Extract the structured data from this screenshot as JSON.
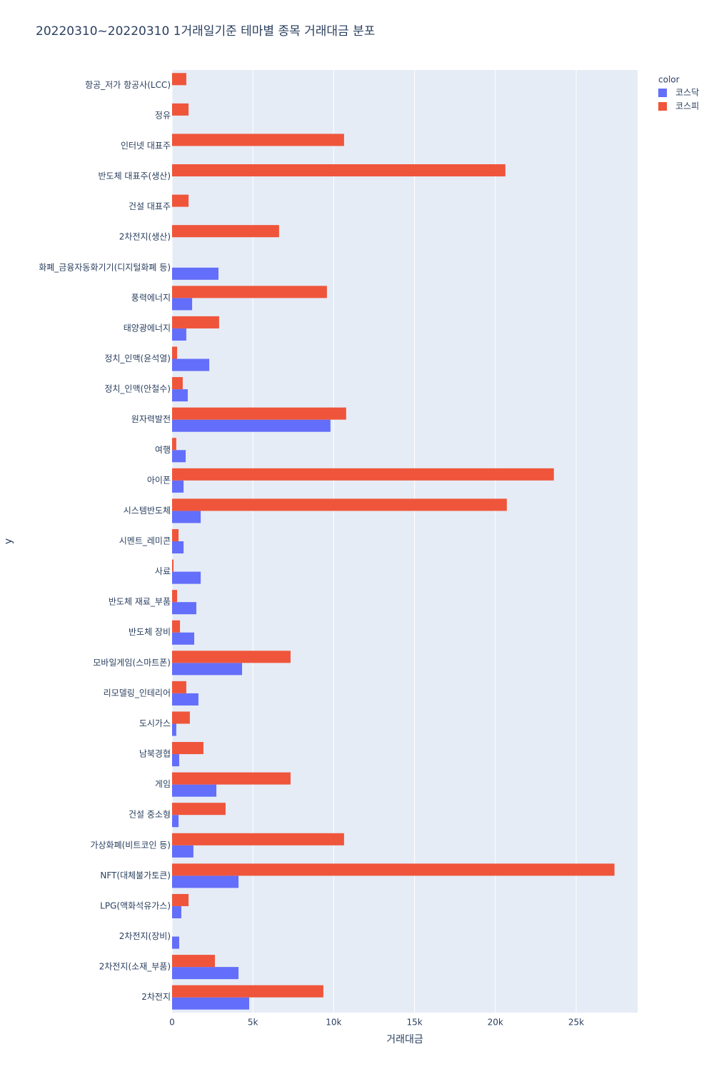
{
  "chart_data": {
    "type": "bar",
    "orientation": "horizontal",
    "title": "20220310~20220310 1거래일기준 테마별 종목 거래대금 분포",
    "x_label": "거래대금",
    "y_label": "y",
    "legend_title": "color",
    "categories": [
      "항공_저가 항공사(LCC)",
      "정유",
      "인터넷 대표주",
      "반도체 대표주(생산)",
      "건설 대표주",
      "2차전지(생산)",
      "화폐_금융자동화기기(디지털화폐 등)",
      "풍력에너지",
      "태양광에너지",
      "정치_인맥(윤석열)",
      "정치_인맥(안철수)",
      "원자력발전",
      "여행",
      "아이폰",
      "시스템반도체",
      "시멘트_레미콘",
      "사료",
      "반도체 재료_부품",
      "반도체 장비",
      "모바일게임(스마트폰)",
      "리모델링_인테리어",
      "도시가스",
      "남북경협",
      "게임",
      "건설 중소형",
      "가상화폐(비트코인 등)",
      "NFT(대체불가토큰)",
      "LPG(액화석유가스)",
      "2차전지(장비)",
      "2차전지(소재_부품)",
      "2차전지"
    ],
    "series": [
      {
        "name": "코스닥",
        "color": "#636efa",
        "values": [
          null,
          null,
          null,
          null,
          null,
          null,
          2870,
          1240,
          880,
          2300,
          970,
          9800,
          840,
          710,
          1770,
          710,
          1770,
          1500,
          1370,
          4330,
          1630,
          260,
          440,
          2740,
          400,
          1320,
          4110,
          570,
          440,
          4110,
          4770
        ]
      },
      {
        "name": "코스피",
        "color": "#ef553b",
        "values": [
          880,
          1020,
          10640,
          20620,
          1020,
          6620,
          null,
          9580,
          2910,
          310,
          660,
          10770,
          260,
          23620,
          20710,
          400,
          90,
          310,
          490,
          7330,
          880,
          1100,
          1940,
          7330,
          3310,
          10640,
          27370,
          1020,
          null,
          2650,
          9360
        ]
      }
    ],
    "xlim": [
      0,
      28800
    ],
    "xticks": [
      0,
      {
        "value": 5000,
        "label": "5k"
      },
      {
        "value": 10000,
        "label": "10k"
      },
      {
        "value": 15000,
        "label": "15k"
      },
      {
        "value": 20000,
        "label": "20k"
      },
      {
        "value": 25000,
        "label": "25k"
      }
    ],
    "grid": true,
    "legend": "top-right"
  }
}
